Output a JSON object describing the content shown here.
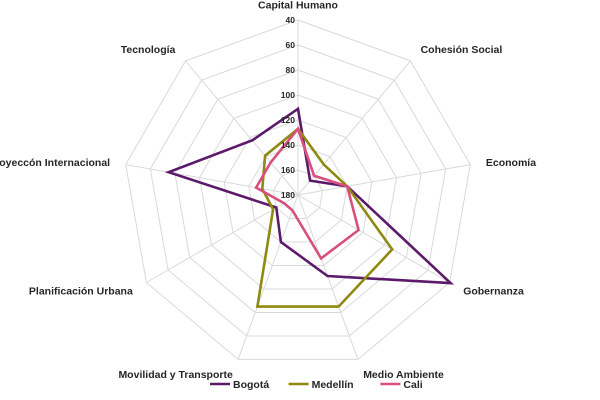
{
  "chart_data": {
    "type": "radar",
    "axes": [
      "Capital Humano",
      "Cohesión Social",
      "Economía",
      "Gobernanza",
      "Medio Ambiente",
      "Movilidad y Transporte",
      "Planificación Urbana",
      "Proyeccón Internacional",
      "Tecnología"
    ],
    "scale": {
      "center": 180,
      "outer": 40,
      "ticks": [
        40,
        60,
        80,
        100,
        120,
        140,
        160,
        180
      ],
      "reversed": true
    },
    "series": [
      {
        "name": "Bogotá",
        "color": "#5c1a6b",
        "values": [
          111,
          165,
          140,
          39,
          111,
          140,
          160,
          75,
          123
        ]
      },
      {
        "name": "Medellín",
        "color": "#8e8a11",
        "values": [
          127,
          148,
          140,
          93,
          85,
          85,
          157,
          151,
          139
        ]
      },
      {
        "name": "Cali",
        "color": "#d9507e",
        "values": [
          127,
          160,
          140,
          124,
          126,
          167,
          167,
          146,
          146
        ]
      }
    ]
  }
}
